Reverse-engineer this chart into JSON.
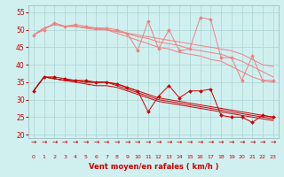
{
  "x": [
    0,
    1,
    2,
    3,
    4,
    5,
    6,
    7,
    8,
    9,
    10,
    11,
    12,
    13,
    14,
    15,
    16,
    17,
    18,
    19,
    20,
    21,
    22,
    23
  ],
  "series_pink_1": [
    48.5,
    50.0,
    52.0,
    51.0,
    51.5,
    51.0,
    50.5,
    50.5,
    50.0,
    49.0,
    44.0,
    52.5,
    44.5,
    50.0,
    44.0,
    44.5,
    53.5,
    53.0,
    42.0,
    42.0,
    35.5,
    42.5,
    35.5,
    35.5
  ],
  "series_pink_2": [
    48.5,
    50.5,
    51.5,
    51.0,
    51.0,
    50.5,
    50.5,
    50.0,
    49.5,
    49.0,
    48.5,
    48.0,
    47.5,
    47.0,
    46.5,
    46.0,
    45.5,
    45.0,
    44.5,
    44.0,
    43.0,
    41.5,
    40.0,
    39.5
  ],
  "series_pink_3": [
    48.5,
    50.5,
    51.5,
    51.0,
    51.0,
    50.5,
    50.5,
    50.0,
    49.5,
    49.0,
    48.0,
    47.5,
    46.5,
    46.0,
    45.5,
    44.5,
    44.0,
    43.5,
    43.0,
    42.0,
    41.0,
    39.5,
    38.0,
    36.5
  ],
  "series_pink_4": [
    48.5,
    50.5,
    51.5,
    51.0,
    51.0,
    50.5,
    50.0,
    50.0,
    49.0,
    48.0,
    47.0,
    46.0,
    45.0,
    44.5,
    43.5,
    43.0,
    42.5,
    41.5,
    41.0,
    39.5,
    38.0,
    36.5,
    35.5,
    35.0
  ],
  "series_red_1": [
    32.5,
    36.5,
    36.5,
    36.0,
    35.5,
    35.5,
    35.0,
    35.0,
    34.5,
    33.5,
    32.5,
    26.5,
    31.0,
    34.0,
    30.5,
    32.5,
    32.5,
    33.0,
    25.5,
    25.0,
    25.0,
    23.5,
    25.5,
    25.0
  ],
  "series_red_2": [
    32.5,
    36.5,
    36.0,
    35.5,
    35.5,
    35.0,
    35.0,
    35.0,
    34.5,
    33.5,
    32.5,
    31.5,
    30.5,
    30.0,
    29.5,
    29.0,
    28.5,
    28.0,
    27.5,
    27.0,
    26.5,
    26.0,
    25.5,
    25.0
  ],
  "series_red_3": [
    32.5,
    36.5,
    36.0,
    35.5,
    35.5,
    35.0,
    35.0,
    35.0,
    34.0,
    33.0,
    32.0,
    31.0,
    30.0,
    29.5,
    29.0,
    28.5,
    28.0,
    27.5,
    27.0,
    26.5,
    26.0,
    25.5,
    25.0,
    24.5
  ],
  "series_red_4": [
    32.5,
    36.5,
    36.0,
    35.5,
    35.0,
    34.5,
    34.0,
    34.0,
    33.5,
    32.5,
    31.5,
    30.5,
    29.5,
    29.0,
    28.5,
    28.0,
    27.5,
    27.0,
    26.5,
    26.0,
    25.5,
    25.0,
    24.5,
    24.0
  ],
  "pink_color": "#f08080",
  "red_color": "#cc0000",
  "bg_color": "#d0f0f0",
  "grid_color": "#b0d8d8",
  "xlabel": "Vent moyen/en rafales ( km/h )",
  "ylim": [
    19,
    57
  ],
  "yticks": [
    20,
    25,
    30,
    35,
    40,
    45,
    50,
    55
  ],
  "xticks": [
    0,
    1,
    2,
    3,
    4,
    5,
    6,
    7,
    8,
    9,
    10,
    11,
    12,
    13,
    14,
    15,
    16,
    17,
    18,
    19,
    20,
    21,
    22,
    23
  ]
}
